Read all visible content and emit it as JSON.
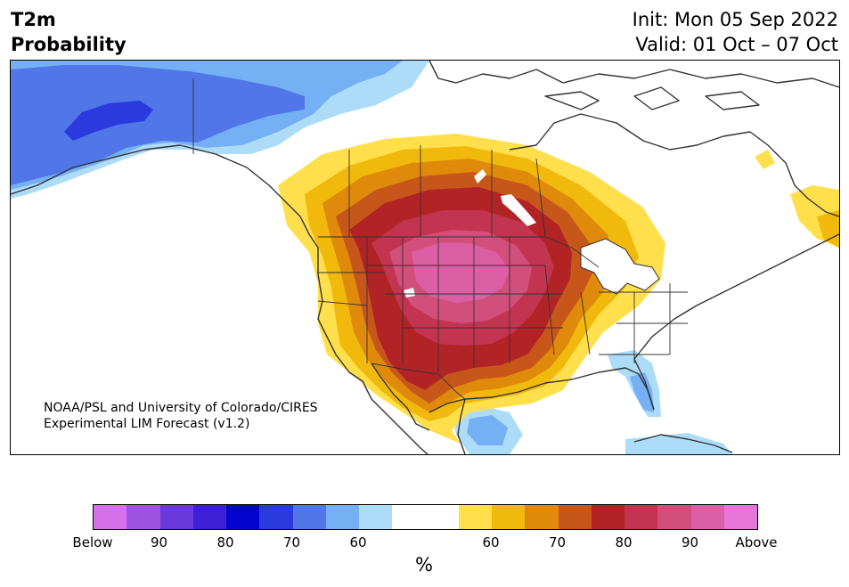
{
  "header": {
    "variable": "T2m",
    "product": "Probability",
    "init": "Init: Mon 05 Sep 2022",
    "valid": "Valid: 01 Oct – 07 Oct"
  },
  "credit": {
    "line1": "NOAA/PSL and University of Colorado/CIRES",
    "line2": "Experimental LIM Forecast (v1.2)"
  },
  "colorbar": {
    "colors": [
      "#d670ea",
      "#9d52e0",
      "#6b38db",
      "#3c1fd6",
      "#0404cf",
      "#2a3ade",
      "#5176e8",
      "#76b0f4",
      "#addcf9",
      "#ffffff",
      "#ffffff",
      "#ffe04c",
      "#f1b90b",
      "#df8a0b",
      "#c7561a",
      "#b22326",
      "#c23450",
      "#d24f7b",
      "#dc5ea4",
      "#e776d8"
    ],
    "ticks": [
      "Below",
      "90",
      "80",
      "70",
      "60",
      "60",
      "70",
      "80",
      "90",
      "Above"
    ],
    "unit": "%"
  },
  "palette": {
    "coastline": "#333333",
    "cold_low": "#addcf9",
    "cold_mid": "#76b0f4",
    "cold_high": "#5176e8",
    "cold_max": "#2a3ade",
    "warm_50": "#ffe04c",
    "warm_60": "#f1b90b",
    "warm_65": "#df8a0b",
    "warm_70": "#c7561a",
    "warm_75": "#b22326",
    "warm_80": "#c23450",
    "warm_85": "#d24f7b",
    "warm_90": "#dc5ea4"
  }
}
